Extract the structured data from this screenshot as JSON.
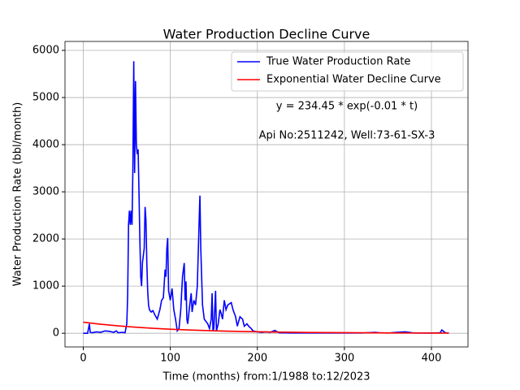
{
  "chart_data": {
    "type": "line",
    "title": "Water Production Decline Curve",
    "xlabel": "Time (months) from:1/1988 to:12/2023",
    "ylabel": "Water Production Rate (bbl/month)",
    "annotations": [
      "y = 234.45 * exp(-0.01 * t)",
      "Api No:2511242, Well:73-61-SX-3"
    ],
    "xlim": [
      -21,
      442
    ],
    "ylim": [
      -290,
      6190
    ],
    "xticks": [
      0,
      100,
      200,
      300,
      400
    ],
    "yticks": [
      0,
      1000,
      2000,
      3000,
      4000,
      5000,
      6000
    ],
    "grid": true,
    "legend": "upper right",
    "series": [
      {
        "name": "True Water Production Rate",
        "color": "#0000ff",
        "x": [
          0,
          5,
          7,
          8,
          10,
          15,
          20,
          25,
          30,
          35,
          38,
          40,
          45,
          48,
          50,
          51,
          52,
          53,
          54,
          55,
          56,
          57,
          58,
          59,
          60,
          61,
          62,
          63,
          64,
          65,
          66,
          67,
          68,
          70,
          71,
          72,
          73,
          74,
          75,
          76,
          78,
          80,
          82,
          85,
          88,
          90,
          92,
          94,
          95,
          96,
          97,
          98,
          100,
          102,
          104,
          106,
          108,
          110,
          112,
          114,
          116,
          117,
          118,
          119,
          120,
          122,
          124,
          125,
          127,
          129,
          131,
          133,
          134,
          135,
          137,
          139,
          141,
          143,
          145,
          147,
          148,
          149,
          150,
          152,
          153,
          155,
          157,
          158,
          160,
          162,
          164,
          166,
          170,
          172,
          175,
          177,
          180,
          183,
          185,
          188,
          190,
          193,
          195,
          200,
          205,
          210,
          215,
          220,
          225,
          240,
          280,
          320,
          335,
          340,
          350,
          360,
          370,
          380,
          400,
          410,
          412,
          414,
          416,
          420
        ],
        "values": [
          0,
          0,
          200,
          20,
          10,
          30,
          20,
          50,
          40,
          20,
          50,
          10,
          20,
          10,
          200,
          800,
          2300,
          2600,
          2300,
          2600,
          2300,
          3500,
          5770,
          3400,
          5350,
          4000,
          3800,
          3900,
          3000,
          2000,
          1200,
          1000,
          1500,
          1800,
          2680,
          2400,
          1500,
          900,
          600,
          500,
          450,
          480,
          400,
          300,
          500,
          700,
          750,
          1350,
          1200,
          1800,
          2020,
          900,
          700,
          950,
          500,
          300,
          50,
          100,
          500,
          1200,
          1490,
          700,
          1100,
          300,
          200,
          550,
          850,
          450,
          700,
          600,
          1000,
          2300,
          2920,
          1800,
          600,
          300,
          250,
          200,
          100,
          300,
          850,
          50,
          100,
          900,
          50,
          200,
          500,
          450,
          300,
          700,
          500,
          600,
          650,
          500,
          350,
          150,
          350,
          300,
          150,
          200,
          150,
          100,
          50,
          30,
          20,
          30,
          20,
          60,
          10,
          5,
          5,
          5,
          20,
          10,
          5,
          20,
          30,
          5,
          5,
          10,
          70,
          40,
          10,
          5
        ]
      },
      {
        "name": "Exponential Water Decline Curve",
        "color": "#ff0000",
        "x": [
          0,
          20,
          40,
          60,
          80,
          100,
          120,
          140,
          160,
          180,
          200,
          220,
          240,
          260,
          280,
          300,
          320,
          340,
          360,
          380,
          400,
          420
        ],
        "values": [
          234,
          192,
          157,
          129,
          105,
          86,
          71,
          58,
          47,
          39,
          32,
          26,
          21,
          17,
          14,
          12,
          10,
          8,
          6,
          5,
          4,
          4
        ]
      }
    ]
  }
}
